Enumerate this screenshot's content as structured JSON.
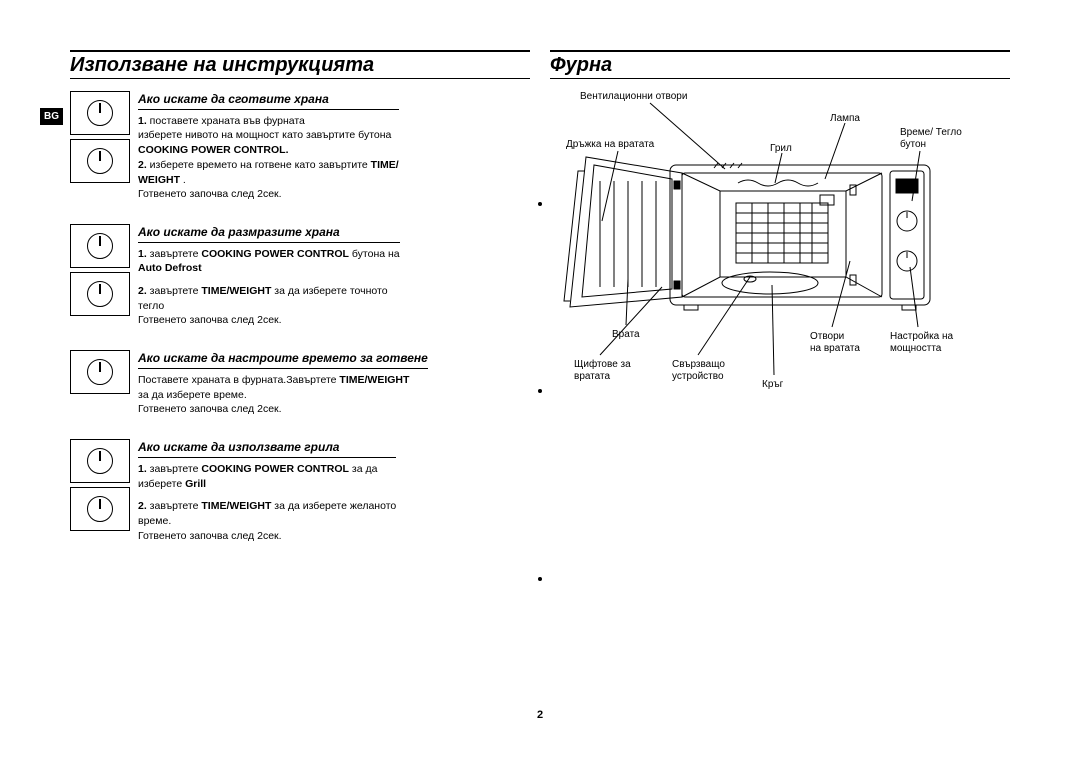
{
  "page_number": "2",
  "lang_badge": "BG",
  "left": {
    "title": "Използване на инструкцията",
    "sections": [
      {
        "heading": "Ако искате да сготвите храна",
        "lines": [
          {
            "b": "1.",
            "t": " поставете храната във фурната"
          },
          {
            "t": "изберете нивото на мощност като завъртите бутона "
          },
          {
            "b": "COOKING POWER CONTROL."
          },
          {
            "b": "2.",
            "t": " изберете времето на готвене като завъртите ",
            "b2": "TIME/"
          },
          {
            "b": "WEIGHT",
            "t": " ."
          },
          {
            "t": "Готвенето започва след 2сек."
          }
        ],
        "dials": 2
      },
      {
        "heading": "Ако искате да размразите храна",
        "lines": [
          {
            "b": "1.",
            "t": " завъртете ",
            "b2": "COOKING POWER CONTROL",
            "t2": " бутона на"
          },
          {
            "b": "Auto Defrost"
          },
          {
            "spacer": true
          },
          {
            "b": "2.",
            "t": " завъртете ",
            "b2": "TIME/WEIGHT",
            "t2": " за да изберете точното"
          },
          {
            "t": "тегло"
          },
          {
            "t": "Готвенето започва след 2сек."
          }
        ],
        "dials": 2
      },
      {
        "heading": "Ако искате да настроите времето за готвене",
        "lines": [
          {
            "t": "Поставете храната в фурната.Завъртете ",
            "b2": "TIME/WEIGHT"
          },
          {
            "t": "за да изберете време."
          },
          {
            "t": "Готвенето започва след 2сек."
          }
        ],
        "dials": 1
      },
      {
        "heading": "Ако искате да използвате грила",
        "lines": [
          {
            "b": "1.",
            "t": " завъртете ",
            "b2": "COOKING POWER CONTROL",
            "t2": " за да"
          },
          {
            "t": "изберете ",
            "b2": "Grill"
          },
          {
            "spacer": true
          },
          {
            "b": "2.",
            "t": " завъртете ",
            "b2": "TIME/WEIGHT",
            "t2": " за да изберете желаното"
          },
          {
            "t": "време."
          },
          {
            "t": "Готвенето започва след 2сек."
          }
        ],
        "dials": 2
      }
    ]
  },
  "right": {
    "title": "Фурна",
    "labels": {
      "vent": "Вентилационни отвори",
      "lamp": "Лампа",
      "timeweight": "Време/ Тегло\nбутон",
      "handle": "Дръжка на вратата",
      "grill": "Грил",
      "door": "Врата",
      "hinges": "Щифтове за\nвратата",
      "coupler": "Свързващо\nустройство",
      "ring": "Кръг",
      "latches": "Отвори\nна вратата",
      "power": "Настройка на\nмощността"
    }
  }
}
